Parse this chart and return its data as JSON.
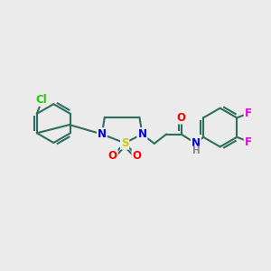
{
  "bg_color": "#ebebeb",
  "bond_color": "#2d6e5e",
  "bond_width": 1.5,
  "N_color": "#0000ee",
  "S_color": "#cccc00",
  "O_color": "#ff0000",
  "Cl_color": "#22cc00",
  "F_color": "#ee00ee",
  "H_color": "#888888",
  "font_size": 8.5,
  "fig_width": 3.0,
  "fig_height": 3.0,
  "dpi": 100,
  "xlim": [
    0,
    10
  ],
  "ylim": [
    0,
    10
  ]
}
